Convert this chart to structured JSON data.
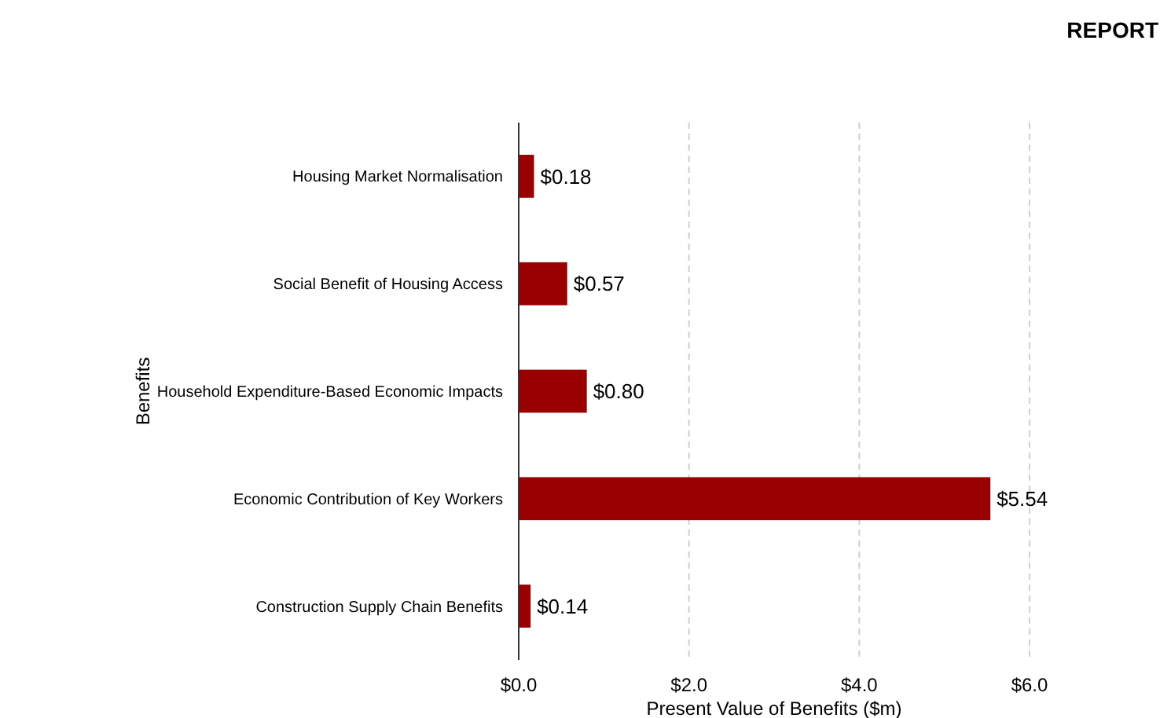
{
  "chart_data": {
    "type": "bar",
    "orientation": "horizontal",
    "xlabel": "Present Value of Benefits ($m)",
    "ylabel": "Benefits",
    "annotations": [
      "REPORT"
    ],
    "categories": [
      "Housing Market Normalisation",
      "Social Benefit of Housing Access",
      "Household Expenditure-Based Economic Impacts",
      "Economic Contribution of Key Workers",
      "Construction Supply Chain Benefits"
    ],
    "values": [
      0.18,
      0.57,
      0.8,
      5.54,
      0.14
    ],
    "value_labels": [
      "$0.18",
      "$0.57",
      "$0.80",
      "$5.54",
      "$0.14"
    ],
    "color": "#990000",
    "xlim": [
      0,
      6
    ],
    "xticks": [
      {
        "value": 0,
        "label": "$0.0"
      },
      {
        "value": 2,
        "label": "$2.0"
      },
      {
        "value": 4,
        "label": "$4.0"
      },
      {
        "value": 6,
        "label": "$6.0"
      }
    ],
    "grid": "x"
  }
}
